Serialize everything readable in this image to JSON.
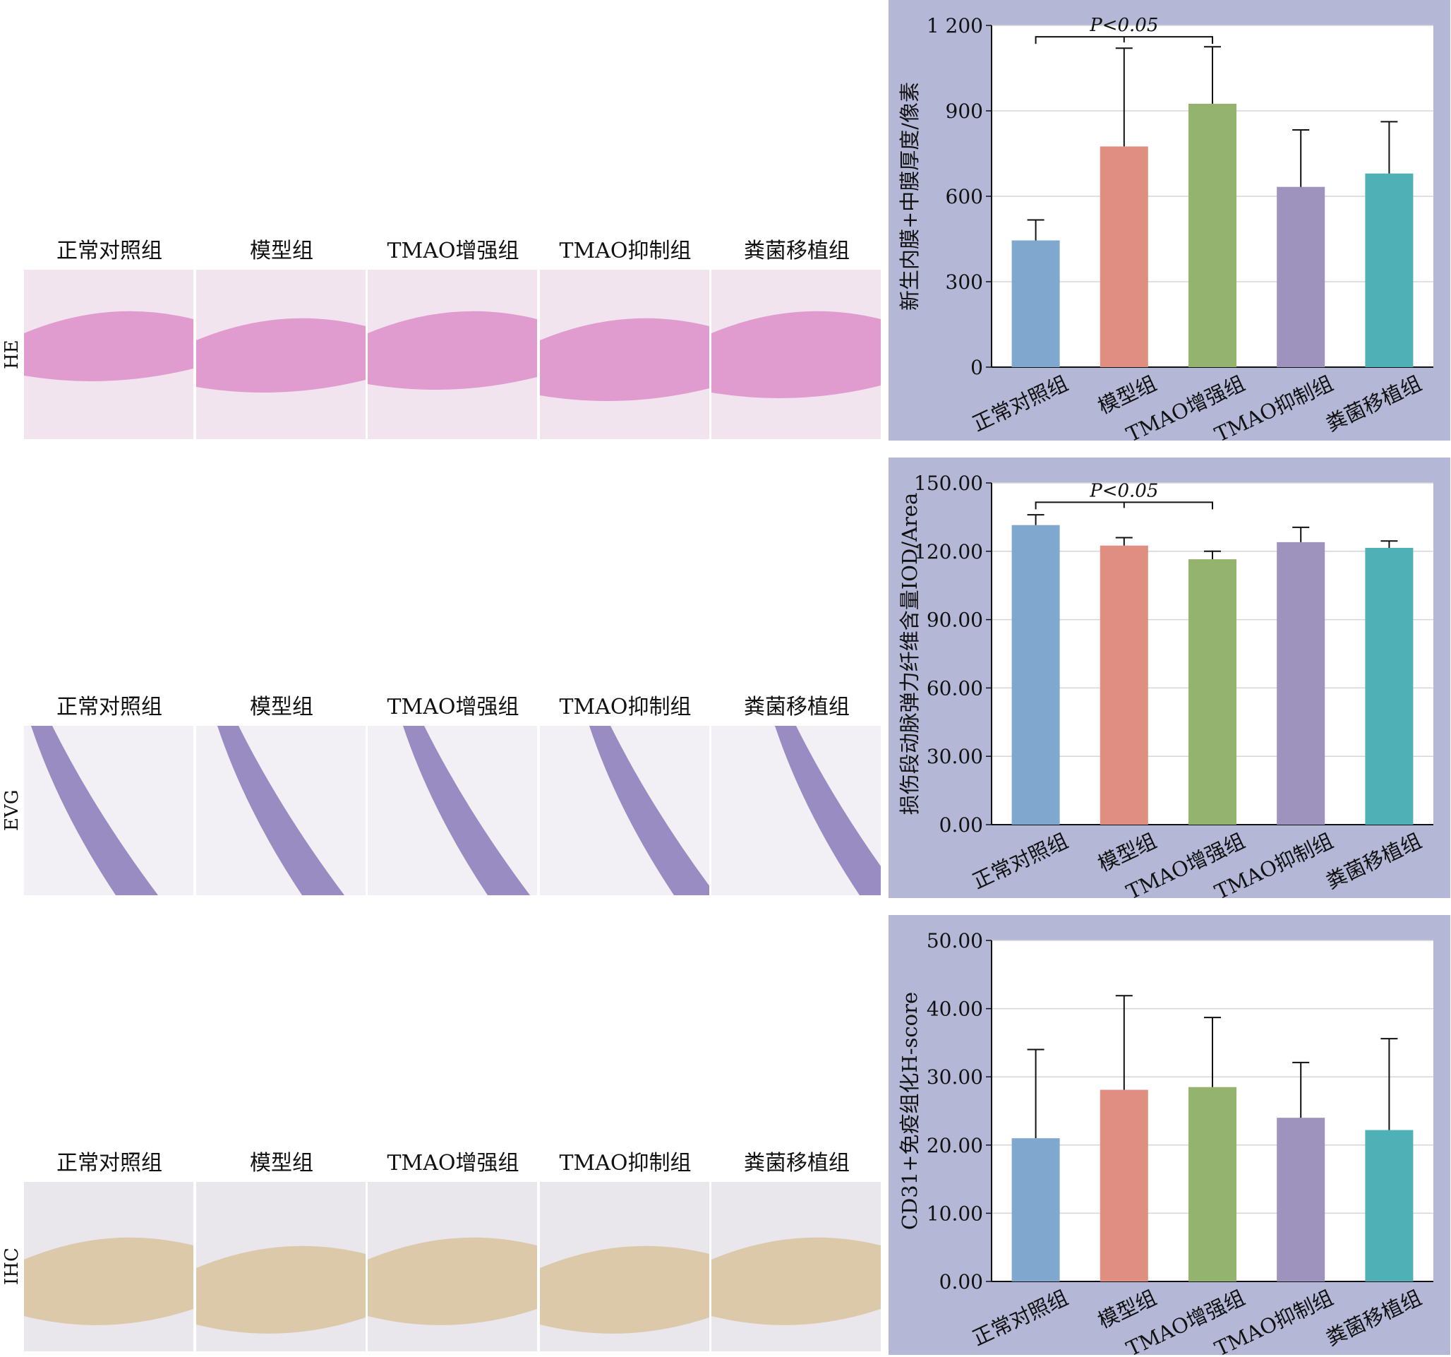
{
  "groups": [
    "正常对照组",
    "模型组",
    "TMAO增强组",
    "TMAO抑制组",
    "粪菌移植组"
  ],
  "rows": [
    {
      "label": "HE",
      "panel_colors": [
        "#e6b8df",
        "#e7b4de",
        "#e2a8d6",
        "#e6bde0",
        "#e8b3dc"
      ]
    },
    {
      "label": "EVG",
      "panel_colors": [
        "#eef0f4",
        "#e6e2ee",
        "#e3c2d8",
        "#e8e6f0",
        "#ede8f0"
      ]
    },
    {
      "label": "IHC",
      "panel_colors": [
        "#e8dccb",
        "#e2d2bc",
        "#e6d6c0",
        "#e8dac6",
        "#e4d2bc"
      ]
    }
  ],
  "colors": {
    "chart_bg": "#b4b8d6",
    "bars": [
      "#80a8ce",
      "#e08e82",
      "#94b36e",
      "#9e93bc",
      "#4fb1b6"
    ]
  },
  "chart_data": [
    {
      "type": "bar",
      "categories": [
        "正常对照组",
        "模型组",
        "TMAO增强组",
        "TMAO抑制组",
        "粪菌移植组"
      ],
      "values": [
        445,
        775,
        925,
        633,
        680
      ],
      "errors": [
        72,
        345,
        200,
        200,
        182
      ],
      "ylabel": "新生内膜+中膜厚度/像素",
      "ylim": [
        0,
        1200
      ],
      "yticks": [
        0,
        300,
        600,
        900,
        1200
      ],
      "ytick_labels": [
        "0",
        "300",
        "600",
        "900",
        "1 200"
      ],
      "significance": {
        "from": 0,
        "to": 2,
        "label": "P<0.05",
        "value": 1160
      },
      "grid": true
    },
    {
      "type": "bar",
      "categories": [
        "正常对照组",
        "模型组",
        "TMAO增强组",
        "TMAO抑制组",
        "粪菌移植组"
      ],
      "values": [
        131.5,
        122.5,
        116.5,
        124,
        121.5
      ],
      "errors": [
        4.5,
        3.5,
        3.5,
        6.5,
        3
      ],
      "ylabel": "损伤段动脉弹力纤维含量IOD/Area",
      "ylim": [
        0,
        150
      ],
      "yticks": [
        0,
        30,
        60,
        90,
        120,
        150
      ],
      "ytick_labels": [
        "0.00",
        "30.00",
        "60.00",
        "90.00",
        "120.00",
        "150.00"
      ],
      "significance": {
        "from": 0,
        "to": 2,
        "label": "P<0.05",
        "value": 141.5
      },
      "grid": true
    },
    {
      "type": "bar",
      "categories": [
        "正常对照组",
        "模型组",
        "TMAO增强组",
        "TMAO抑制组",
        "粪菌移植组"
      ],
      "values": [
        21,
        28.1,
        28.5,
        24,
        22.2
      ],
      "errors": [
        13,
        13.8,
        10.2,
        8.1,
        13.4
      ],
      "ylabel": "CD31+免疫组化H-score",
      "ylim": [
        0,
        50
      ],
      "yticks": [
        0,
        10,
        20,
        30,
        40,
        50
      ],
      "ytick_labels": [
        "0.00",
        "10.00",
        "20.00",
        "30.00",
        "40.00",
        "50.00"
      ],
      "grid": true
    }
  ]
}
